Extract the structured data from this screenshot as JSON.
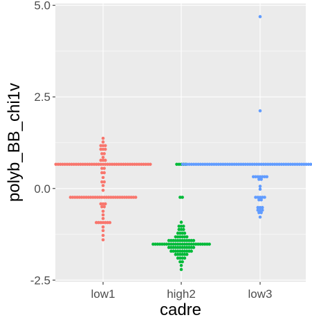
{
  "chart_data": {
    "type": "scatter",
    "xlabel": "cadre",
    "ylabel": "polyb_BB_chi1v",
    "categories": [
      "low1",
      "high2",
      "low3"
    ],
    "y_ticks": [
      -2.5,
      0.0,
      2.5,
      5.0
    ],
    "y_tick_labels": [
      "-2.5",
      "0.0",
      "2.5",
      "5.0"
    ],
    "ylim": [
      -2.55,
      5.05
    ],
    "grid": true,
    "legend": "none",
    "colors": {
      "low1": "#F8766D",
      "high2": "#00BA38",
      "low3": "#619CFF",
      "panel": "#EBEBEB",
      "grid": "#FFFFFF"
    },
    "series": [
      {
        "category": "low1",
        "points": [
          {
            "y": 1.37,
            "n": 1
          },
          {
            "y": 1.27,
            "n": 1
          },
          {
            "y": 1.17,
            "n": 3
          },
          {
            "y": 1.07,
            "n": 3
          },
          {
            "y": 0.95,
            "n": 2
          },
          {
            "y": 0.85,
            "n": 1
          },
          {
            "y": 0.77,
            "n": 3
          },
          {
            "y": 0.66,
            "n": 43
          },
          {
            "y": 0.55,
            "n": 2
          },
          {
            "y": 0.43,
            "n": 2
          },
          {
            "y": 0.3,
            "n": 1
          },
          {
            "y": 0.18,
            "n": 2
          },
          {
            "y": 0.08,
            "n": 1
          },
          {
            "y": -0.05,
            "n": 1
          },
          {
            "y": -0.24,
            "n": 30
          },
          {
            "y": -0.42,
            "n": 3
          },
          {
            "y": -0.5,
            "n": 2
          },
          {
            "y": -0.62,
            "n": 1
          },
          {
            "y": -0.72,
            "n": 1
          },
          {
            "y": -0.82,
            "n": 1
          },
          {
            "y": -0.93,
            "n": 7
          },
          {
            "y": -1.05,
            "n": 1
          },
          {
            "y": -1.15,
            "n": 1
          },
          {
            "y": -1.28,
            "n": 1
          },
          {
            "y": -1.4,
            "n": 1
          }
        ]
      },
      {
        "category": "high2",
        "points": [
          {
            "y": 0.66,
            "n": 5
          },
          {
            "y": -0.24,
            "n": 2
          },
          {
            "y": -0.92,
            "n": 1
          },
          {
            "y": -1.03,
            "n": 3
          },
          {
            "y": -1.12,
            "n": 3
          },
          {
            "y": -1.22,
            "n": 4
          },
          {
            "y": -1.32,
            "n": 6
          },
          {
            "y": -1.42,
            "n": 12
          },
          {
            "y": -1.52,
            "n": 26
          },
          {
            "y": -1.61,
            "n": 12
          },
          {
            "y": -1.71,
            "n": 10
          },
          {
            "y": -1.8,
            "n": 6
          },
          {
            "y": -1.9,
            "n": 4
          },
          {
            "y": -2.0,
            "n": 2
          },
          {
            "y": -2.1,
            "n": 1
          },
          {
            "y": -2.21,
            "n": 1
          }
        ]
      },
      {
        "category": "low3",
        "points": [
          {
            "y": 4.69,
            "n": 1
          },
          {
            "y": 2.12,
            "n": 1
          },
          {
            "y": 0.66,
            "n": 70
          },
          {
            "y": 0.32,
            "n": 7
          },
          {
            "y": 0.25,
            "n": 2
          },
          {
            "y": 0.06,
            "n": 1
          },
          {
            "y": -0.02,
            "n": 1
          },
          {
            "y": -0.24,
            "n": 5
          },
          {
            "y": -0.31,
            "n": 2
          },
          {
            "y": -0.52,
            "n": 3
          },
          {
            "y": -0.59,
            "n": 3
          },
          {
            "y": -0.66,
            "n": 2
          },
          {
            "y": -0.78,
            "n": 1
          }
        ]
      }
    ]
  }
}
